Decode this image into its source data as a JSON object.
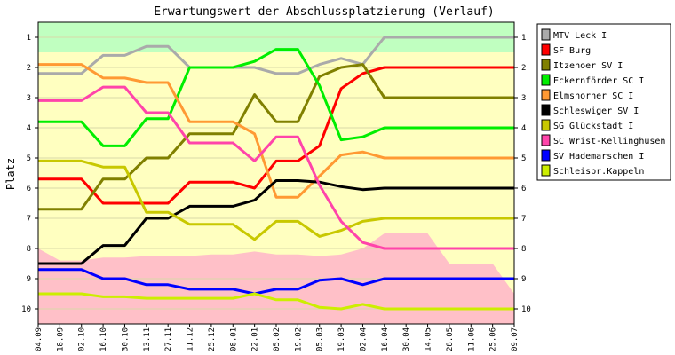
{
  "chart_data": {
    "type": "line",
    "title": "Erwartungswert der Abschlussplatzierung (Verlauf)",
    "ylabel": "Platz",
    "ylim": [
      0.5,
      10.5
    ],
    "y_inverted": true,
    "yticks": [
      1,
      2,
      3,
      4,
      5,
      6,
      7,
      8,
      9,
      10
    ],
    "categories": [
      "04.09",
      "18.09",
      "02.10",
      "16.10",
      "30.10",
      "13.11",
      "27.11",
      "11.12",
      "25.12",
      "08.01",
      "22.01",
      "05.02",
      "19.02",
      "05.03",
      "19.03",
      "02.04",
      "16.04",
      "30.04",
      "14.05",
      "28.05",
      "11.06",
      "25.06",
      "09.07"
    ],
    "data_until_index": 16,
    "legend_position": "right",
    "band_colors": {
      "top": "#c0ffc0",
      "middle": "#ffffc0",
      "bottom": "#ffc0c8"
    },
    "bands": {
      "green_bottom": [
        1.5,
        1.5,
        1.5,
        1.5,
        1.5,
        1.5,
        1.5,
        1.5,
        1.5,
        1.5,
        1.5,
        1.5,
        1.5,
        1.5,
        1.5,
        1.5,
        1.5,
        1.5,
        1.5,
        1.5,
        1.5,
        1.5,
        1.5
      ],
      "pink_top": [
        8.0,
        8.4,
        8.4,
        8.3,
        8.3,
        8.25,
        8.25,
        8.25,
        8.2,
        8.2,
        8.1,
        8.2,
        8.2,
        8.25,
        8.2,
        8.0,
        7.5,
        7.5,
        7.5,
        8.5,
        8.5,
        8.5,
        9.5
      ]
    },
    "series": [
      {
        "name": "MTV Leck I",
        "color": "#aaaaaa",
        "values": [
          2.2,
          2.2,
          2.2,
          1.6,
          1.6,
          1.3,
          1.3,
          2.0,
          2.0,
          2.0,
          2.0,
          2.2,
          2.2,
          1.9,
          1.7,
          1.9,
          1.0,
          1.0,
          1.0,
          1.0,
          1.0,
          1.0,
          1.0
        ]
      },
      {
        "name": "SF Burg",
        "color": "#ff0000",
        "values": [
          5.7,
          5.7,
          5.7,
          6.5,
          6.5,
          6.5,
          6.5,
          5.8,
          5.8,
          5.8,
          6.0,
          5.1,
          5.1,
          4.6,
          2.7,
          2.2,
          2.0,
          2.0,
          2.0,
          2.0,
          2.0,
          2.0,
          2.0
        ]
      },
      {
        "name": "Itzehoer SV I",
        "color": "#808000",
        "values": [
          6.7,
          6.7,
          6.7,
          5.7,
          5.7,
          5.0,
          5.0,
          4.2,
          4.2,
          4.2,
          2.9,
          3.8,
          3.8,
          2.3,
          2.0,
          1.9,
          3.0,
          3.0,
          3.0,
          3.0,
          3.0,
          3.0,
          3.0
        ]
      },
      {
        "name": "Eckernförder SC I",
        "color": "#00ee00",
        "values": [
          3.8,
          3.8,
          3.8,
          4.6,
          4.6,
          3.7,
          3.7,
          2.0,
          2.0,
          2.0,
          1.8,
          1.4,
          1.4,
          2.6,
          4.4,
          4.3,
          4.0,
          4.0,
          4.0,
          4.0,
          4.0,
          4.0,
          4.0
        ]
      },
      {
        "name": "Elmshorner SC I",
        "color": "#ff9933",
        "values": [
          1.9,
          1.9,
          1.9,
          2.35,
          2.35,
          2.5,
          2.5,
          3.8,
          3.8,
          3.8,
          4.2,
          6.3,
          6.3,
          5.6,
          4.9,
          4.8,
          5.0,
          5.0,
          5.0,
          5.0,
          5.0,
          5.0,
          5.0
        ]
      },
      {
        "name": "Schleswiger SV I",
        "color": "#000000",
        "values": [
          8.5,
          8.5,
          8.5,
          7.9,
          7.9,
          7.0,
          7.0,
          6.6,
          6.6,
          6.6,
          6.4,
          5.75,
          5.75,
          5.8,
          5.95,
          6.05,
          6.0,
          6.0,
          6.0,
          6.0,
          6.0,
          6.0,
          6.0
        ]
      },
      {
        "name": "SG Glückstadt I",
        "color": "#c8c800",
        "values": [
          5.1,
          5.1,
          5.1,
          5.3,
          5.3,
          6.8,
          6.8,
          7.2,
          7.2,
          7.2,
          7.7,
          7.1,
          7.1,
          7.6,
          7.4,
          7.1,
          7.0,
          7.0,
          7.0,
          7.0,
          7.0,
          7.0,
          7.0
        ]
      },
      {
        "name": "SC Wrist-Kellinghusen",
        "color": "#ff44aa",
        "values": [
          3.1,
          3.1,
          3.1,
          2.65,
          2.65,
          3.5,
          3.5,
          4.5,
          4.5,
          4.5,
          5.1,
          4.3,
          4.3,
          5.9,
          7.1,
          7.8,
          8.0,
          8.0,
          8.0,
          8.0,
          8.0,
          8.0,
          8.0
        ]
      },
      {
        "name": "SV Hademarschen I",
        "color": "#0000ff",
        "values": [
          8.7,
          8.7,
          8.7,
          9.0,
          9.0,
          9.2,
          9.2,
          9.35,
          9.35,
          9.35,
          9.5,
          9.35,
          9.35,
          9.05,
          9.0,
          9.2,
          9.0,
          9.0,
          9.0,
          9.0,
          9.0,
          9.0,
          9.0
        ]
      },
      {
        "name": "Schleispr.Kappeln",
        "color": "#ccee00",
        "values": [
          9.5,
          9.5,
          9.5,
          9.6,
          9.6,
          9.65,
          9.65,
          9.65,
          9.65,
          9.65,
          9.5,
          9.7,
          9.7,
          9.95,
          10.0,
          9.85,
          10.0,
          10.0,
          10.0,
          10.0,
          10.0,
          10.0,
          10.0
        ]
      }
    ]
  }
}
